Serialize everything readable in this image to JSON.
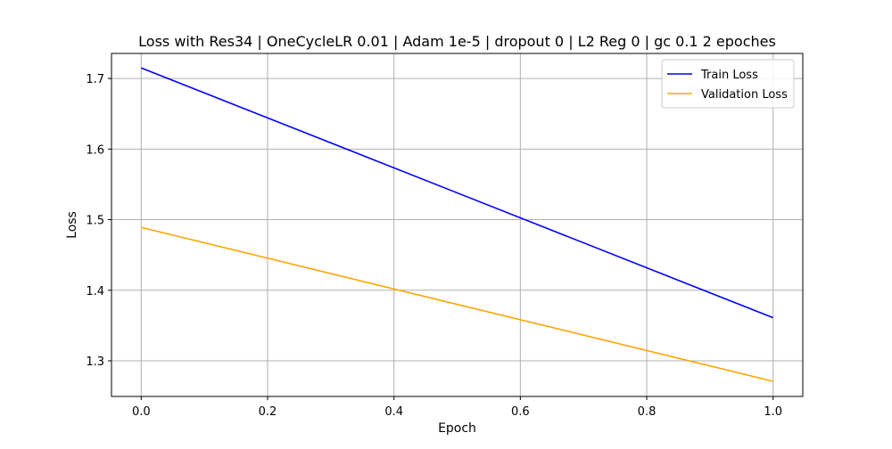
{
  "chart_data": {
    "type": "line",
    "title": "Loss with Res34 | OneCycleLR 0.01 | Adam 1e-5 | dropout 0 | L2 Reg 0 | gc 0.1 2 epoches",
    "xlabel": "Epoch",
    "ylabel": "Loss",
    "xlim": [
      -0.047,
      1.047
    ],
    "ylim": [
      1.2495,
      1.7355
    ],
    "x_ticks": [
      0.0,
      0.2,
      0.4,
      0.6,
      0.8,
      1.0
    ],
    "x_tick_labels": [
      "0.0",
      "0.2",
      "0.4",
      "0.6",
      "0.8",
      "1.0"
    ],
    "y_ticks": [
      1.3,
      1.4,
      1.5,
      1.6,
      1.7
    ],
    "y_tick_labels": [
      "1.3",
      "1.4",
      "1.5",
      "1.6",
      "1.7"
    ],
    "grid": true,
    "legend_position": "upper right",
    "series": [
      {
        "name": "Train Loss",
        "color": "#0000ff",
        "x": [
          0,
          1
        ],
        "y": [
          1.715,
          1.361
        ]
      },
      {
        "name": "Validation Loss",
        "color": "#ffa500",
        "x": [
          0,
          1
        ],
        "y": [
          1.489,
          1.271
        ]
      }
    ]
  }
}
